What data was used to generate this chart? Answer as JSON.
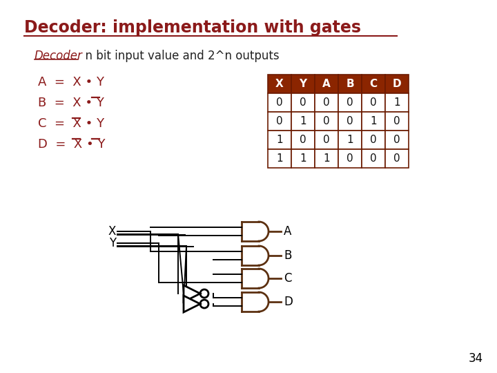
{
  "title": "Decoder: implementation with gates",
  "title_color": "#8B1A1A",
  "bg_color": "#FFFFFF",
  "subtitle_italic": "Decoder",
  "subtitle_rest": "  n bit input value and 2^n outputs",
  "table_header": [
    "X",
    "Y",
    "A",
    "B",
    "C",
    "D"
  ],
  "table_data": [
    [
      0,
      0,
      0,
      0,
      0,
      1
    ],
    [
      0,
      1,
      0,
      0,
      1,
      0
    ],
    [
      1,
      0,
      0,
      1,
      0,
      0
    ],
    [
      1,
      1,
      1,
      0,
      0,
      0
    ]
  ],
  "table_header_bg": "#8B2500",
  "table_border": "#6B1A00",
  "gate_color": "#5C3010",
  "wire_color": "#000000",
  "output_labels": [
    "A",
    "B",
    "C",
    "D"
  ],
  "page_number": "34",
  "eq_lines": [
    {
      "label": "A",
      "bar_x": false,
      "bar_y": false
    },
    {
      "label": "B",
      "bar_x": false,
      "bar_y": true
    },
    {
      "label": "C",
      "bar_x": true,
      "bar_y": false
    },
    {
      "label": "D",
      "bar_x": true,
      "bar_y": true
    }
  ]
}
